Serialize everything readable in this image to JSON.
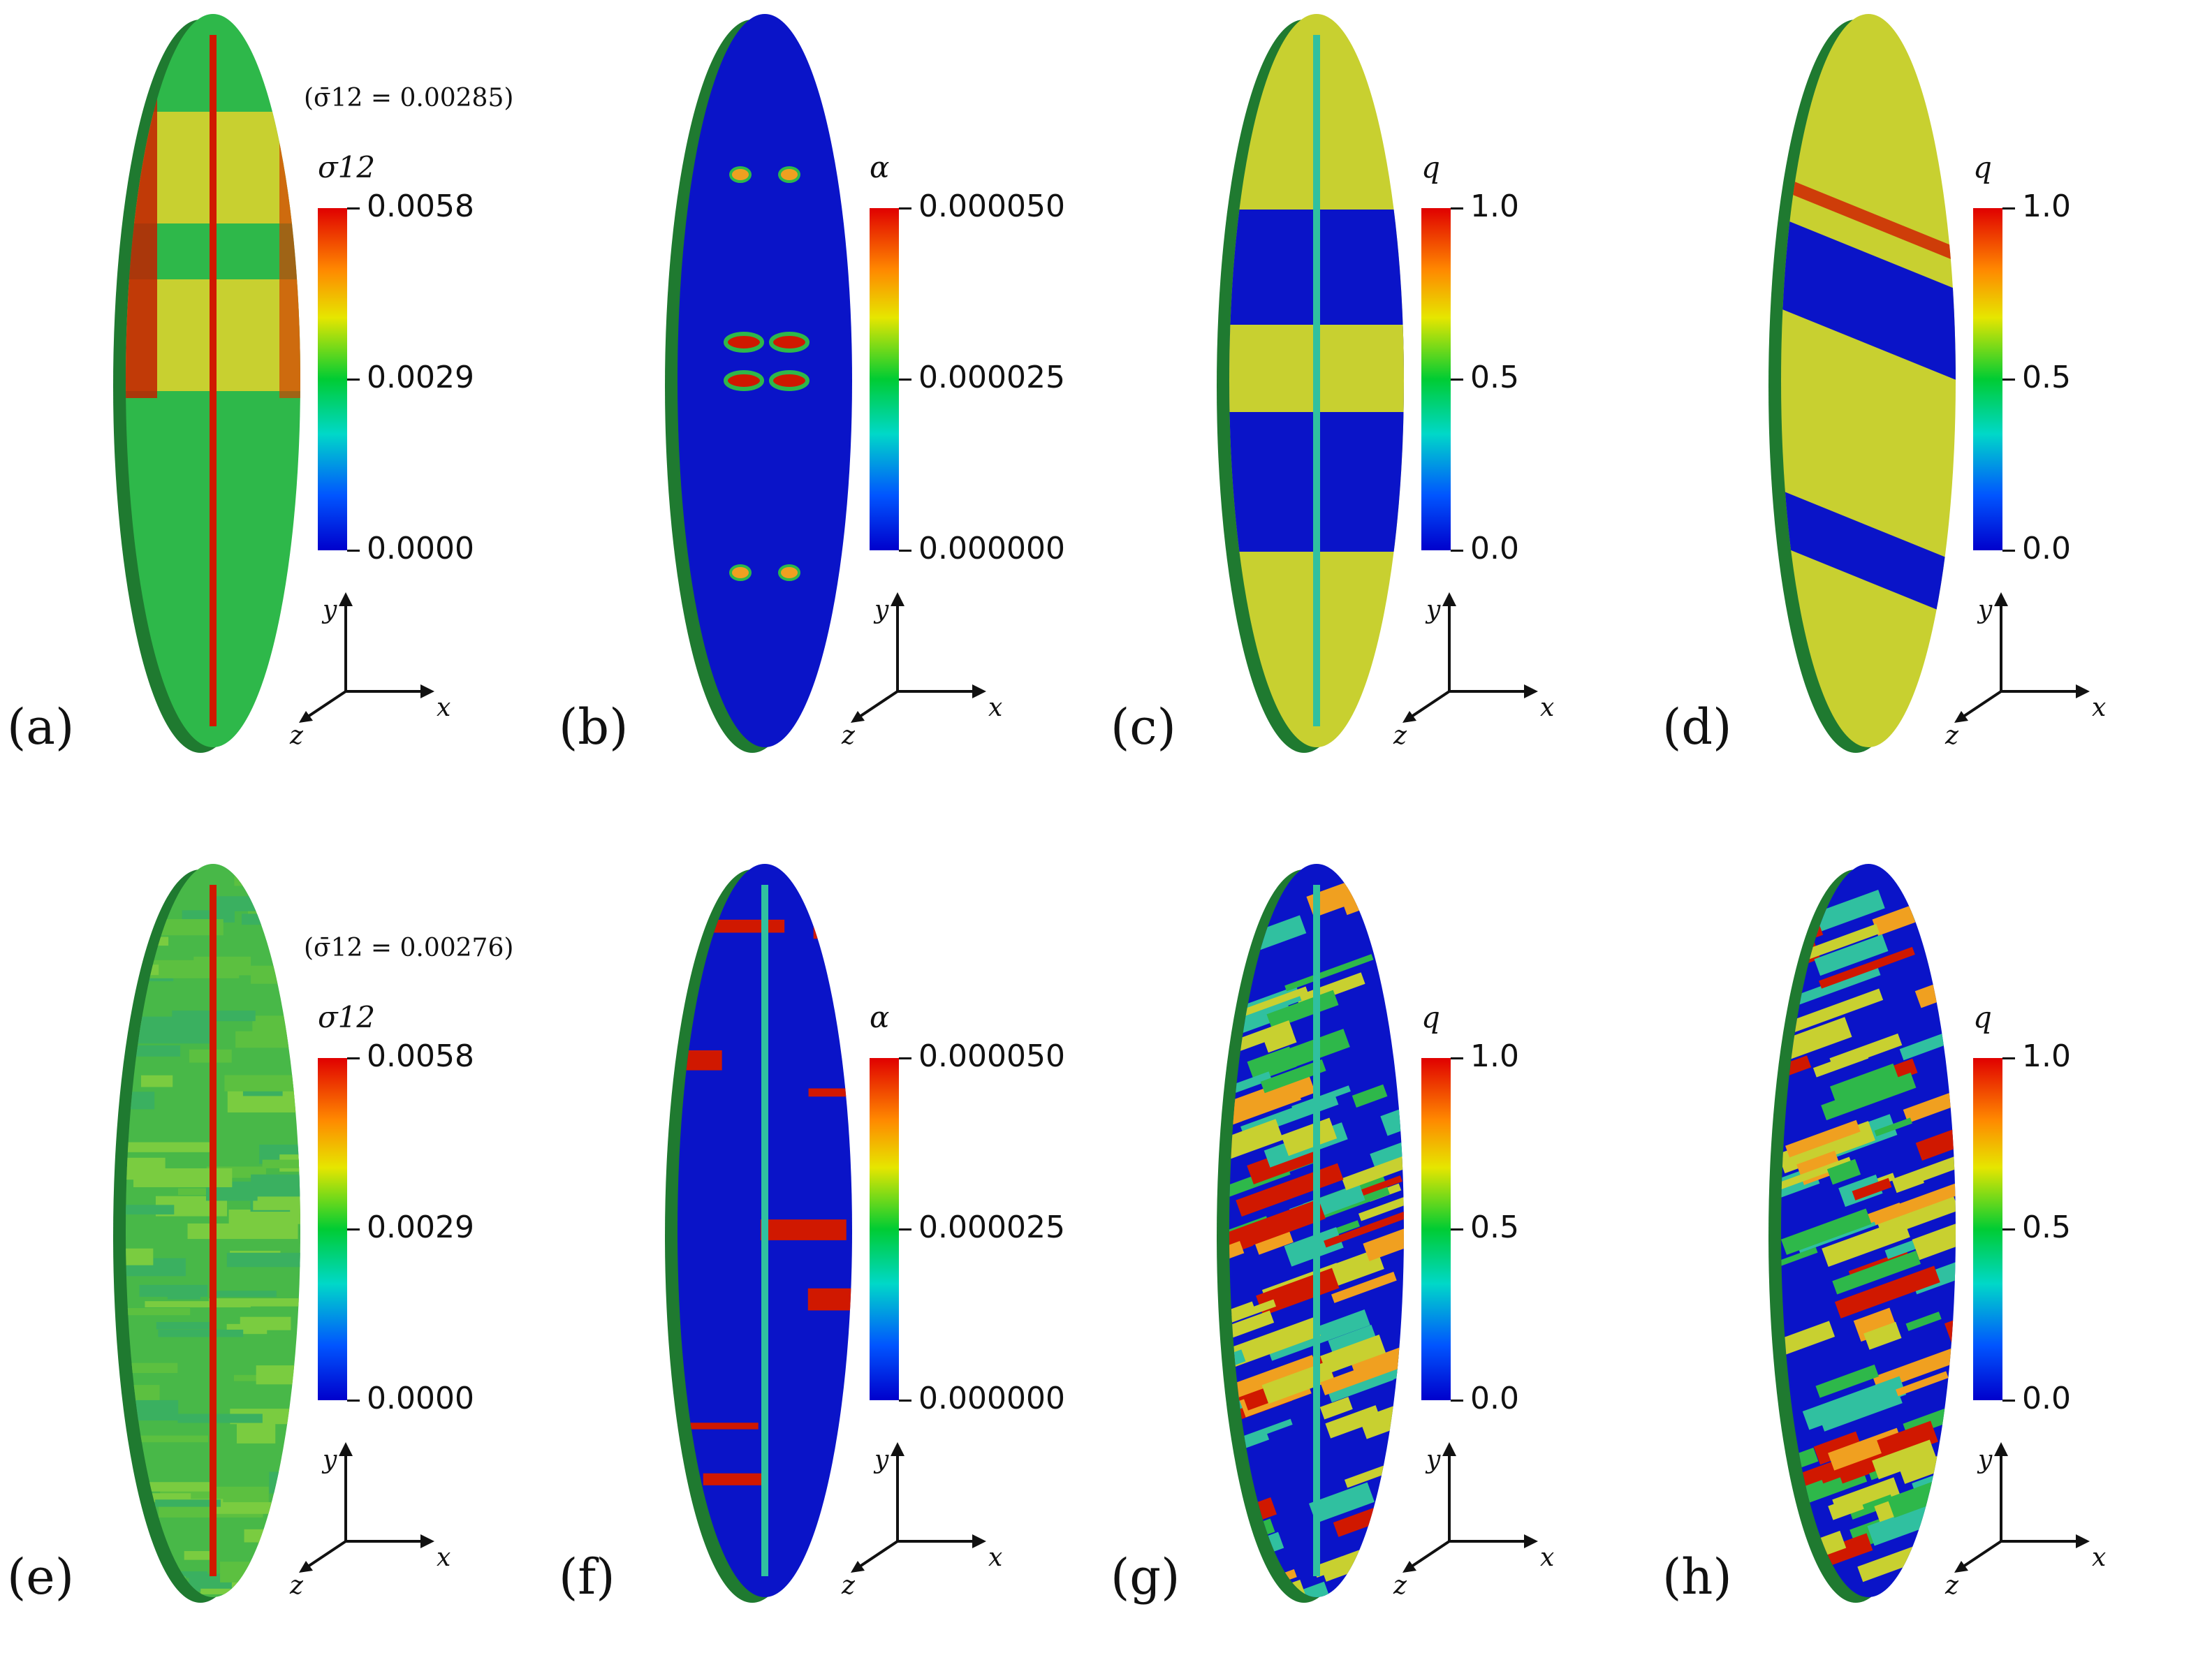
{
  "panels": [
    {
      "label": "(a)",
      "variable": "σ12",
      "avg": "(σ̄12 = 0.00285)",
      "ticks": [
        "0.0058",
        "0.0029",
        "0.0000"
      ],
      "pattern": "stress_structured"
    },
    {
      "label": "(b)",
      "variable": "α",
      "avg": "",
      "ticks": [
        "0.000050",
        "0.000025",
        "0.000000"
      ],
      "pattern": "alpha_structured"
    },
    {
      "label": "(c)",
      "variable": "q",
      "avg": "",
      "ticks": [
        "1.0",
        "0.5",
        "0.0"
      ],
      "pattern": "q_front_structured"
    },
    {
      "label": "(d)",
      "variable": "q",
      "avg": "",
      "ticks": [
        "1.0",
        "0.5",
        "0.0"
      ],
      "pattern": "q_back_structured"
    },
    {
      "label": "(e)",
      "variable": "σ12",
      "avg": "(σ̄12 = 0.00276)",
      "ticks": [
        "0.0058",
        "0.0029",
        "0.0000"
      ],
      "pattern": "stress_random"
    },
    {
      "label": "(f)",
      "variable": "α",
      "avg": "",
      "ticks": [
        "0.000050",
        "0.000025",
        "0.000000"
      ],
      "pattern": "alpha_random"
    },
    {
      "label": "(g)",
      "variable": "q",
      "avg": "",
      "ticks": [
        "1.0",
        "0.5",
        "0.0"
      ],
      "pattern": "q_front_random"
    },
    {
      "label": "(h)",
      "variable": "q",
      "avg": "",
      "ticks": [
        "1.0",
        "0.5",
        "0.0"
      ],
      "pattern": "q_back_random"
    }
  ],
  "axes": {
    "x": "x",
    "y": "y",
    "z": "z"
  },
  "colors": {
    "red": "#d01800",
    "orange": "#f0a020",
    "yellow": "#c8d030",
    "green": "#2eb84a",
    "dgreen": "#2a9a40",
    "blue": "#0a14c8",
    "cyan": "#30c0a0"
  }
}
